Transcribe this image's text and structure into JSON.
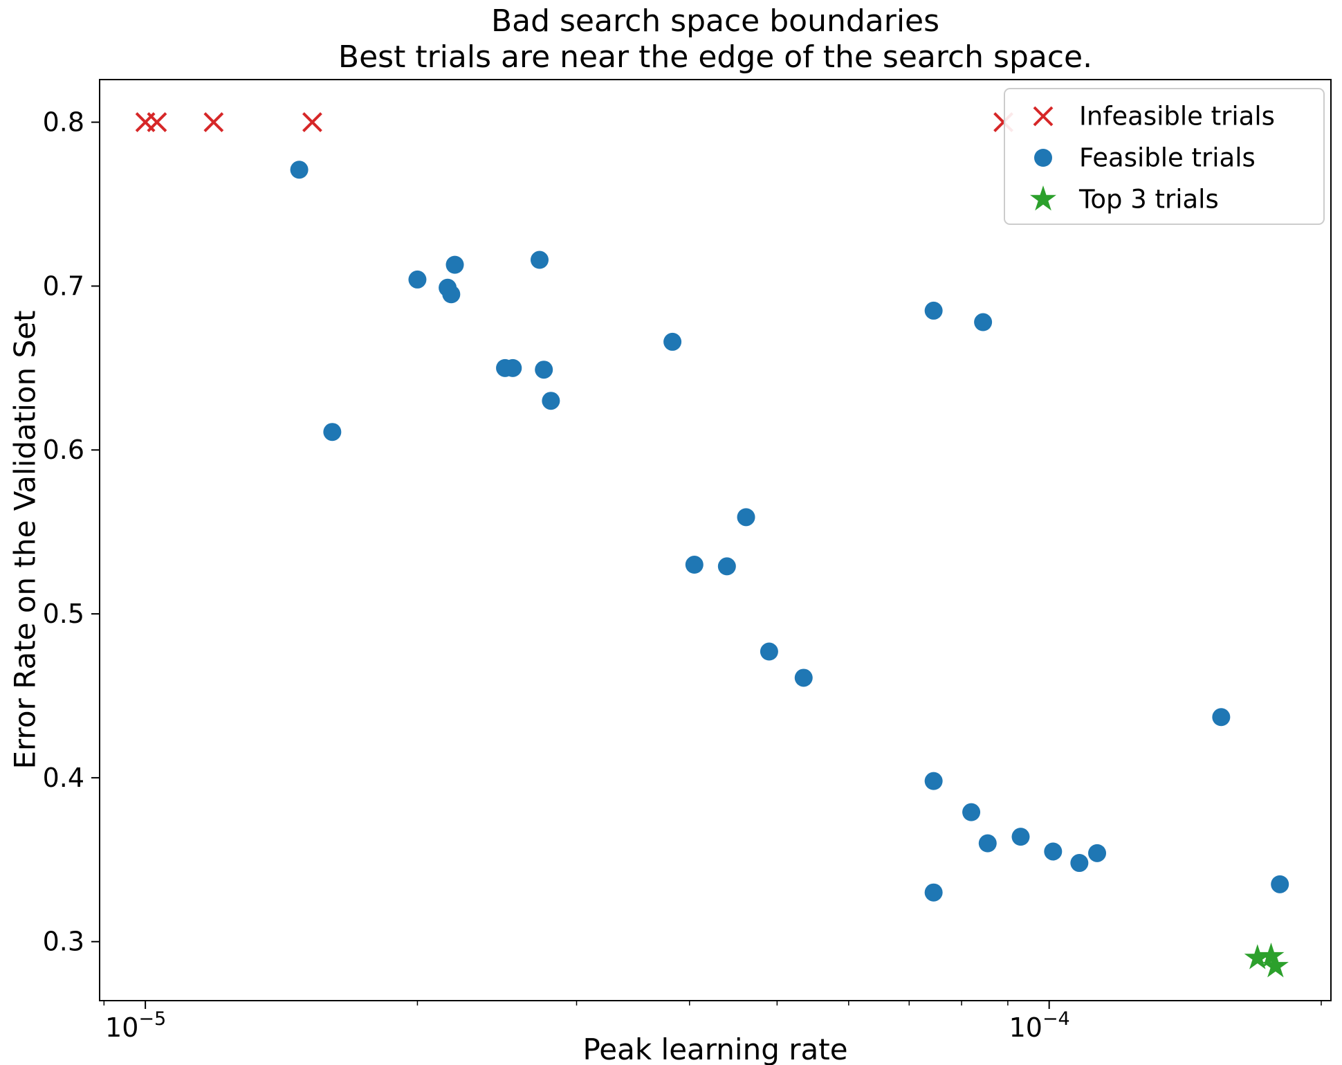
{
  "figure": {
    "background": "#ffffff",
    "frame_color": "#000000"
  },
  "chart_data": {
    "type": "scatter",
    "title": "Bad search space boundaries",
    "subtitle": "Best trials are near the edge of the search space.",
    "xlabel": "Peak learning rate",
    "ylabel": "Error Rate on the Validation Set",
    "x_scale": "log",
    "y_scale": "linear",
    "xlim": [
      8.9e-06,
      0.000205
    ],
    "ylim": [
      0.264,
      0.826
    ],
    "grid": false,
    "legend_position": "upper right",
    "xticks": [
      {
        "value": 1e-05,
        "base": "10",
        "exponent": "−5",
        "label": "10^-5"
      },
      {
        "value": 0.0001,
        "base": "10",
        "exponent": "−4",
        "label": "10^-4"
      }
    ],
    "yticks": [
      0.3,
      0.4,
      0.5,
      0.6,
      0.7,
      0.8
    ],
    "series": [
      {
        "name": "Infeasible trials",
        "marker": "x",
        "color": "#d62728",
        "points": [
          [
            1e-05,
            0.8
          ],
          [
            1.03e-05,
            0.8
          ],
          [
            1.19e-05,
            0.8
          ],
          [
            1.53e-05,
            0.8
          ],
          [
            8.9e-05,
            0.8
          ]
        ]
      },
      {
        "name": "Feasible trials",
        "marker": "circle",
        "color": "#1f77b4",
        "points": [
          [
            1.48e-05,
            0.771
          ],
          [
            1.61e-05,
            0.611
          ],
          [
            2e-05,
            0.704
          ],
          [
            2.16e-05,
            0.699
          ],
          [
            2.18e-05,
            0.695
          ],
          [
            2.2e-05,
            0.713
          ],
          [
            2.5e-05,
            0.65
          ],
          [
            2.55e-05,
            0.65
          ],
          [
            2.73e-05,
            0.716
          ],
          [
            2.76e-05,
            0.649
          ],
          [
            2.81e-05,
            0.63
          ],
          [
            3.83e-05,
            0.666
          ],
          [
            4.05e-05,
            0.53
          ],
          [
            4.4e-05,
            0.529
          ],
          [
            4.62e-05,
            0.559
          ],
          [
            4.9e-05,
            0.477
          ],
          [
            5.35e-05,
            0.461
          ],
          [
            7.45e-05,
            0.685
          ],
          [
            8.45e-05,
            0.678
          ],
          [
            7.45e-05,
            0.398
          ],
          [
            7.45e-05,
            0.33
          ],
          [
            8.2e-05,
            0.379
          ],
          [
            8.55e-05,
            0.36
          ],
          [
            9.3e-05,
            0.364
          ],
          [
            0.000101,
            0.355
          ],
          [
            0.000108,
            0.348
          ],
          [
            0.000113,
            0.354
          ],
          [
            0.000155,
            0.437
          ],
          [
            0.00018,
            0.335
          ]
        ]
      },
      {
        "name": "Top 3 trials",
        "marker": "star",
        "color": "#2ca02c",
        "points": [
          [
            0.00017,
            0.29
          ],
          [
            0.000176,
            0.291
          ],
          [
            0.000178,
            0.285
          ]
        ]
      }
    ]
  }
}
